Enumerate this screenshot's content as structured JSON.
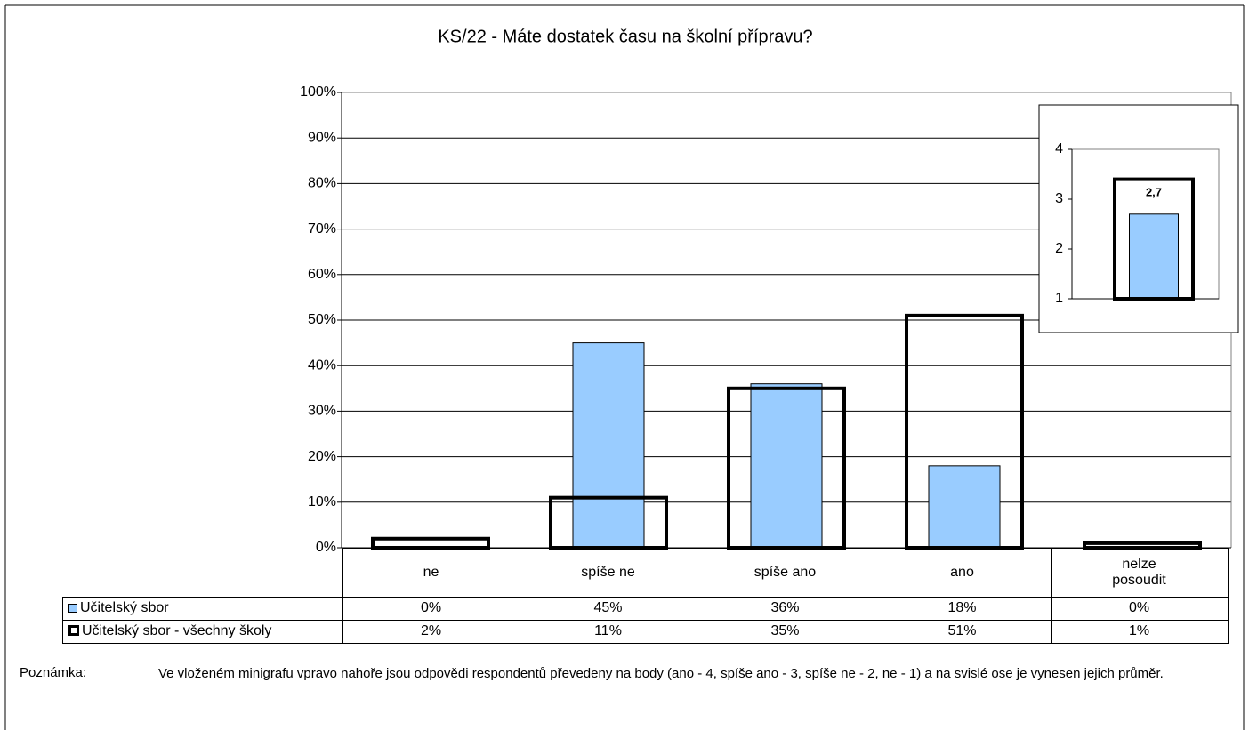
{
  "chart_data": [
    {
      "type": "bar",
      "title": "KS/22 - Máte dostatek času na školní přípravu?",
      "categories": [
        "ne",
        "spíše ne",
        "spíše ano",
        "ano",
        "nelze posoudit"
      ],
      "series": [
        {
          "name": "Učitelský sbor",
          "color": "#99ccff",
          "style": "filled",
          "values": [
            0,
            45,
            36,
            18,
            0
          ],
          "value_labels": [
            "0%",
            "45%",
            "36%",
            "18%",
            "0%"
          ]
        },
        {
          "name": "Učitelský sbor - všechny školy",
          "color": "#000000",
          "style": "outline",
          "values": [
            2,
            11,
            35,
            51,
            1
          ],
          "value_labels": [
            "2%",
            "11%",
            "35%",
            "51%",
            "1%"
          ]
        }
      ],
      "ylim": [
        0,
        100
      ],
      "yticks": [
        {
          "value": 0,
          "label": "0%"
        },
        {
          "value": 10,
          "label": "10%"
        },
        {
          "value": 20,
          "label": "20%"
        },
        {
          "value": 30,
          "label": "30%"
        },
        {
          "value": 40,
          "label": "40%"
        },
        {
          "value": 50,
          "label": "50%"
        },
        {
          "value": 60,
          "label": "60%"
        },
        {
          "value": 70,
          "label": "70%"
        },
        {
          "value": 80,
          "label": "80%"
        },
        {
          "value": 90,
          "label": "90%"
        },
        {
          "value": 100,
          "label": "100%"
        }
      ],
      "grid": true
    },
    {
      "type": "bar",
      "series": [
        {
          "color": "#99ccff",
          "style": "filled",
          "values": [
            2.7
          ],
          "value_labels": [
            "2,7"
          ]
        },
        {
          "color": "#000000",
          "style": "outline",
          "values": [
            3.4
          ]
        }
      ],
      "ylim": [
        1,
        4
      ],
      "yticks": [
        1,
        2,
        3,
        4
      ],
      "grid": false
    }
  ],
  "note": {
    "label": "Poznámka:",
    "text": "Ve vloženém minigrafu vpravo nahoře jsou odpovědi respondentů převedeny na body (ano - 4, spíše ano - 3, spíše ne - 2, ne - 1) a na svislé ose je vynesen jejich průměr."
  }
}
